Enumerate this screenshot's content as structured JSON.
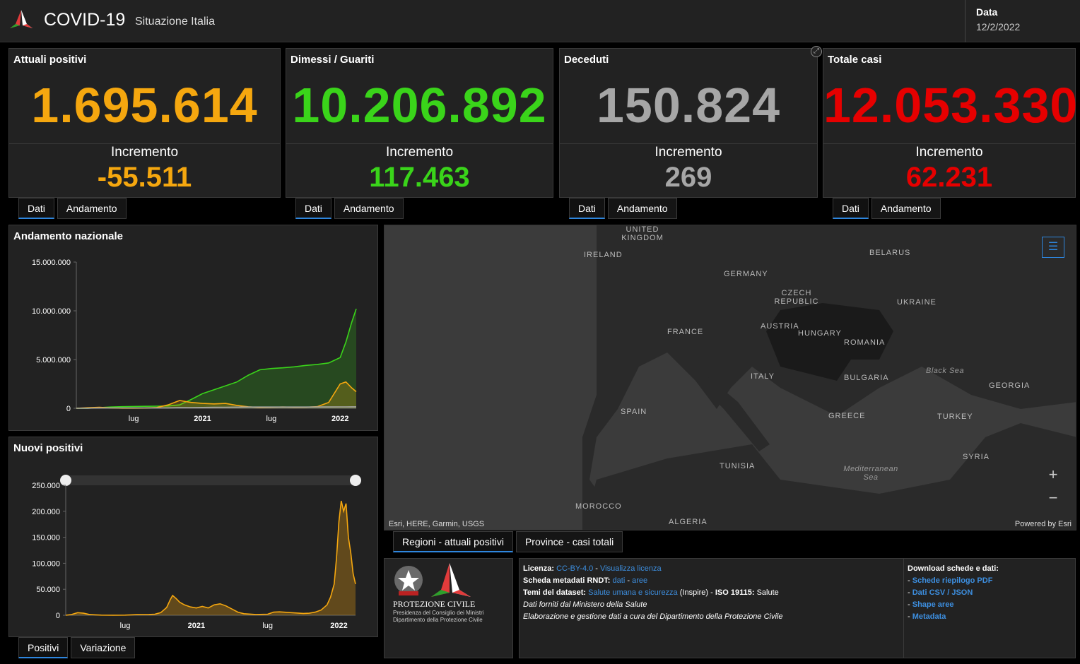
{
  "header": {
    "title": "COVID-19",
    "subtitle": "Situazione Italia",
    "date_label": "Data",
    "date_value": "12/2/2022"
  },
  "cards": [
    {
      "title": "Attuali positivi",
      "value": "1.695.614",
      "inc_label": "Incremento",
      "inc_value": "-55.511",
      "color": "#f5a70f",
      "tabs": [
        "Dati",
        "Andamento"
      ]
    },
    {
      "title": "Dimessi / Guariti",
      "value": "10.206.892",
      "inc_label": "Incremento",
      "inc_value": "117.463",
      "color": "#3ad41a",
      "tabs": [
        "Dati",
        "Andamento"
      ]
    },
    {
      "title": "Deceduti",
      "value": "150.824",
      "inc_label": "Incremento",
      "inc_value": "269",
      "color": "#a6a6a6",
      "tabs": [
        "Dati",
        "Andamento"
      ]
    },
    {
      "title": "Totale casi",
      "value": "12.053.330",
      "inc_label": "Incremento",
      "inc_value": "62.231",
      "color": "#e60000",
      "tabs": [
        "Dati",
        "Andamento"
      ]
    }
  ],
  "chart_data": [
    {
      "type": "line",
      "title": "Andamento nazionale",
      "ylim": [
        0,
        15000000
      ],
      "yticks": [
        "15.000.000",
        "10.000.000",
        "5.000.000",
        "0"
      ],
      "ytick_values": [
        15000000,
        10000000,
        5000000,
        0
      ],
      "xticks": [
        "lug",
        "2021",
        "lug",
        "2022"
      ],
      "xtick_values": [
        5,
        11,
        17,
        23
      ],
      "xlim": [
        0,
        24.4
      ],
      "x": [
        0,
        1,
        2,
        3,
        4,
        5,
        6,
        7,
        8,
        9,
        10,
        11,
        12,
        13,
        14,
        15,
        16,
        17,
        18,
        19,
        20,
        21,
        22,
        23,
        23.5,
        24,
        24.4
      ],
      "series": [
        {
          "name": "Dimessi / Guariti",
          "color": "#3ad41a",
          "values": [
            0,
            5000,
            65000,
            130000,
            170000,
            190000,
            205000,
            215000,
            240000,
            350000,
            900000,
            1500000,
            1900000,
            2300000,
            2700000,
            3400000,
            3950000,
            4080000,
            4150000,
            4250000,
            4400000,
            4500000,
            4650000,
            5200000,
            6800000,
            8800000,
            10200000
          ]
        },
        {
          "name": "Attuali positivi",
          "color": "#f5a70f",
          "values": [
            0,
            60000,
            100000,
            40000,
            18000,
            13000,
            20000,
            80000,
            350000,
            800000,
            600000,
            500000,
            450000,
            500000,
            300000,
            150000,
            80000,
            100000,
            130000,
            100000,
            110000,
            170000,
            600000,
            2500000,
            2700000,
            2100000,
            1700000
          ]
        },
        {
          "name": "Deceduti",
          "color": "#a6a6a6",
          "values": [
            0,
            10000,
            28000,
            33000,
            35000,
            35000,
            36000,
            37000,
            45000,
            62000,
            75000,
            90000,
            100000,
            112000,
            120000,
            127000,
            128000,
            129000,
            131000,
            132000,
            134000,
            138000,
            140000,
            145000,
            147000,
            149000,
            150800
          ]
        }
      ]
    },
    {
      "type": "area",
      "title": "Nuovi positivi",
      "ylim": [
        0,
        250000
      ],
      "yticks": [
        "250.000",
        "200.000",
        "150.000",
        "100.000",
        "50.000",
        "0"
      ],
      "ytick_values": [
        250000,
        200000,
        150000,
        100000,
        50000,
        0
      ],
      "xticks": [
        "lug",
        "2021",
        "lug",
        "2022"
      ],
      "xtick_values": [
        5,
        11,
        17,
        23
      ],
      "xlim": [
        0,
        24.4
      ],
      "color": "#f5a70f",
      "x": [
        0,
        0.5,
        1,
        1.5,
        2,
        2.5,
        3,
        4,
        5,
        6,
        7,
        7.5,
        8,
        8.5,
        8.8,
        9,
        9.3,
        9.6,
        10,
        10.5,
        11,
        11.5,
        12,
        12.5,
        13,
        13.5,
        14,
        14.5,
        15,
        16,
        17,
        17.5,
        18,
        19,
        20,
        20.5,
        21,
        21.5,
        22,
        22.3,
        22.6,
        22.8,
        23,
        23.2,
        23.4,
        23.6,
        23.8,
        24,
        24.2,
        24.4
      ],
      "values": [
        0,
        1500,
        5000,
        4000,
        1500,
        800,
        300,
        200,
        250,
        1200,
        1500,
        2000,
        5000,
        15000,
        30000,
        38000,
        32000,
        25000,
        20000,
        16000,
        14000,
        17000,
        14000,
        20000,
        22000,
        18000,
        12000,
        6000,
        3000,
        1500,
        2000,
        6000,
        6500,
        5000,
        3500,
        4000,
        6000,
        10000,
        20000,
        35000,
        60000,
        110000,
        180000,
        220000,
        200000,
        215000,
        150000,
        120000,
        80000,
        60000
      ]
    }
  ],
  "panels": {
    "andamento_title": "Andamento nazionale",
    "nuovi_title": "Nuovi positivi",
    "nuovi_tabs": [
      "Positivi",
      "Variazione"
    ]
  },
  "map": {
    "attribution": "Esri, HERE, Garmin, USGS",
    "powered": "Powered by Esri",
    "labels": [
      "UNITED KINGDOM",
      "IRELAND",
      "BELARUS",
      "GERMANY",
      "CZECH REPUBLIC",
      "UKRAINE",
      "FRANCE",
      "AUSTRIA",
      "HUNGARY",
      "ROMANIA",
      "Black Sea",
      "ITALY",
      "BULGARIA",
      "GEORGIA",
      "SPAIN",
      "GREECE",
      "TURKEY",
      "TUNISIA",
      "Mediterranean Sea",
      "SYRIA",
      "MOROCCO",
      "ALGERIA"
    ],
    "tabs": [
      "Regioni - attuali positivi",
      "Province - casi totali"
    ],
    "zoom_in": "+",
    "zoom_out": "−"
  },
  "logo": {
    "name": "PROTEZIONE CIVILE",
    "line1": "Presidenza del Consiglio dei Ministri",
    "line2": "Dipartimento della Protezione Civile"
  },
  "info": {
    "licenza_label": "Licenza:",
    "licenza_link": "CC-BY-4.0",
    "licenza_sep": " - ",
    "licenza_view": "Visualizza licenza",
    "rndt_label": "Scheda metadati RNDT:",
    "rndt_dati": "dati",
    "rndt_sep": " - ",
    "rndt_aree": "aree",
    "temi_label": "Temi del dataset:",
    "temi_link": "Salute umana e sicurezza",
    "temi_inspire": " (Inspire) - ",
    "iso_label": "ISO 19115:",
    "iso_value": " Salute",
    "fonte": "Dati forniti dal Ministero della Salute",
    "elaborazione": "Elaborazione e gestione dati a cura del Dipartimento della Protezione Civile",
    "download_title": "Download schede e dati:",
    "downloads": [
      "Schede riepilogo PDF",
      "Dati CSV / JSON",
      "Shape aree",
      "Metadata"
    ]
  }
}
